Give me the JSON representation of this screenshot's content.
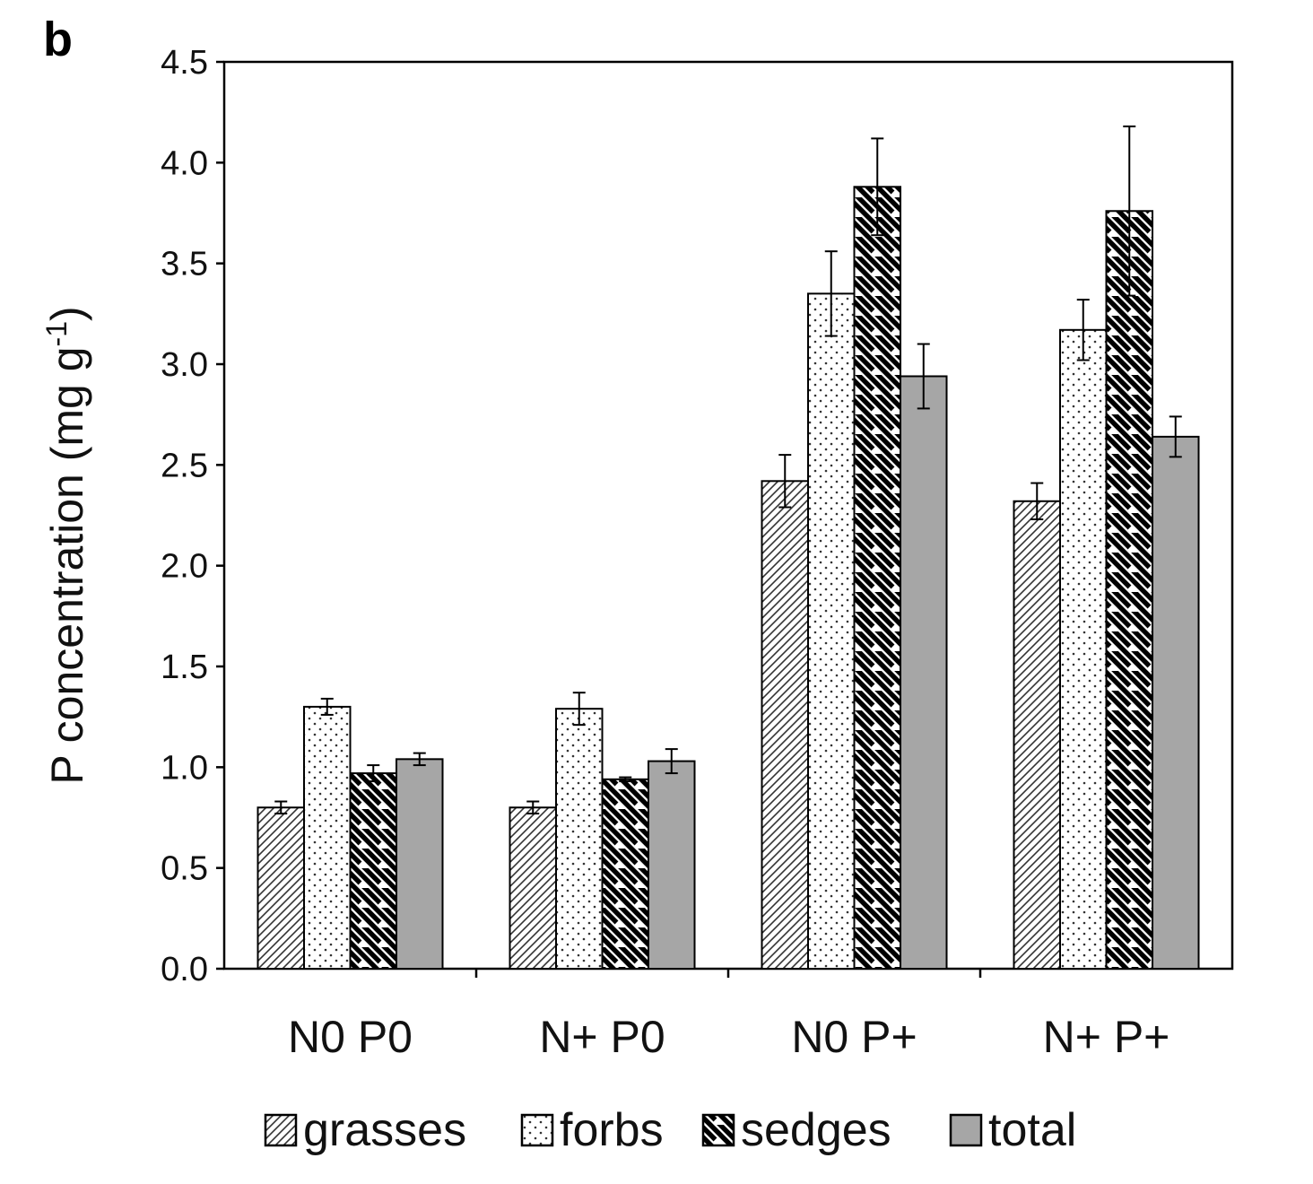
{
  "panel_label": "b",
  "chart_data": {
    "type": "bar",
    "title": "",
    "xlabel": "",
    "ylabel": "P concentration (mg g",
    "ylabel_sup": "-1",
    "ylabel_close": ")",
    "ylim": [
      0,
      4.5
    ],
    "yticks": [
      "0.0",
      "0.5",
      "1.0",
      "1.5",
      "2.0",
      "2.5",
      "3.0",
      "3.5",
      "4.0",
      "4.5"
    ],
    "categories": [
      "N0 P0",
      "N+ P0",
      "N0 P+",
      "N+ P+"
    ],
    "legend_position": "bottom",
    "grid": false,
    "series": [
      {
        "name": "grasses",
        "pattern": "hatch-fine",
        "values": [
          0.8,
          0.8,
          2.42,
          2.32
        ],
        "errors": [
          0.03,
          0.03,
          0.13,
          0.09
        ]
      },
      {
        "name": "forbs",
        "pattern": "dots",
        "values": [
          1.3,
          1.29,
          3.35,
          3.17
        ],
        "errors": [
          0.04,
          0.08,
          0.21,
          0.15
        ]
      },
      {
        "name": "sedges",
        "pattern": "hatch-bold",
        "values": [
          0.97,
          0.94,
          3.88,
          3.76
        ],
        "errors": [
          0.04,
          0.01,
          0.24,
          0.42
        ]
      },
      {
        "name": "total",
        "pattern": "solid-gray",
        "values": [
          1.04,
          1.03,
          2.94,
          2.64
        ],
        "errors": [
          0.03,
          0.06,
          0.16,
          0.1
        ]
      }
    ],
    "colors": {
      "axis": "#000000",
      "bar_outline": "#000000",
      "total_fill": "#a6a6a6"
    }
  }
}
